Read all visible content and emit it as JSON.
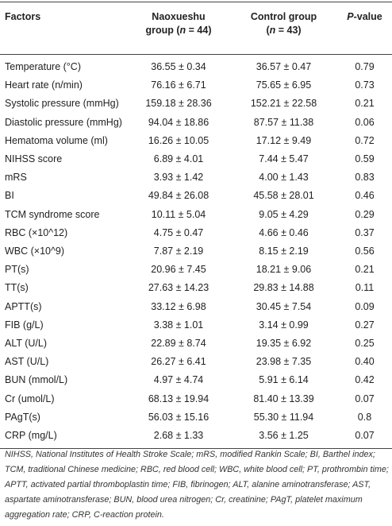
{
  "header": {
    "factors": "Factors",
    "group1": [
      "Naoxueshu",
      "group (",
      "n",
      " = 44)"
    ],
    "group2": [
      "Control group",
      "(",
      "n",
      " = 43)"
    ],
    "pvalue": [
      "P",
      "-value"
    ]
  },
  "table": {
    "rows": [
      [
        "Temperature (°C)",
        "36.55 ± 0.34",
        "36.57 ± 0.47",
        "0.79"
      ],
      [
        "Heart rate (n/min)",
        "76.16 ± 6.71",
        "75.65 ± 6.95",
        "0.73"
      ],
      [
        "Systolic pressure (mmHg)",
        "159.18 ± 28.36",
        "152.21 ± 22.58",
        "0.21"
      ],
      [
        "Diastolic pressure (mmHg)",
        "94.04 ± 18.86",
        "87.57 ± 11.38",
        "0.06"
      ],
      [
        "Hematoma volume (ml)",
        "16.26 ± 10.05",
        "17.12 ± 9.49",
        "0.72"
      ],
      [
        "NIHSS score",
        "6.89 ± 4.01",
        "7.44 ± 5.47",
        "0.59"
      ],
      [
        "mRS",
        "3.93 ± 1.42",
        "4.00 ± 1.43",
        "0.83"
      ],
      [
        "BI",
        "49.84 ± 26.08",
        "45.58 ± 28.01",
        "0.46"
      ],
      [
        "TCM syndrome score",
        "10.11 ± 5.04",
        "9.05 ± 4.29",
        "0.29"
      ],
      [
        "RBC (×10^12)",
        "4.75 ± 0.47",
        "4.66 ± 0.46",
        "0.37"
      ],
      [
        "WBC (×10^9)",
        "7.87 ± 2.19",
        "8.15 ± 2.19",
        "0.56"
      ],
      [
        "PT(s)",
        "20.96 ± 7.45",
        "18.21 ± 9.06",
        "0.21"
      ],
      [
        "TT(s)",
        "27.63 ± 14.23",
        "29.83 ± 14.88",
        "0.11"
      ],
      [
        "APTT(s)",
        "33.12 ± 6.98",
        "30.45 ± 7.54",
        "0.09"
      ],
      [
        "FIB (g/L)",
        "3.38 ± 1.01",
        "3.14 ± 0.99",
        "0.27"
      ],
      [
        "ALT (U/L)",
        "22.89 ± 8.74",
        "19.35 ± 6.92",
        "0.25"
      ],
      [
        "AST (U/L)",
        "26.27 ± 6.41",
        "23.98 ± 7.35",
        "0.40"
      ],
      [
        "BUN (mmol/L)",
        "4.97 ± 4.74",
        "5.91 ± 6.14",
        "0.42"
      ],
      [
        "Cr (umol/L)",
        "68.13 ± 19.94",
        "81.40 ± 13.39",
        "0.07"
      ],
      [
        "PAgT(s)",
        "56.03 ± 15.16",
        "55.30 ± 11.94",
        "0.8"
      ],
      [
        "CRP (mg/L)",
        "2.68 ± 1.33",
        "3.56 ± 1.25",
        "0.07"
      ]
    ]
  },
  "footnote": "NIHSS, National Institutes of Health Stroke Scale; mRS, modified Rankin Scale; BI, Barthel index; TCM, traditional Chinese medicine; RBC, red blood cell; WBC, white blood cell; PT, prothrombin time; APTT, activated partial thromboplastin time; FIB, fibrinogen; ALT, alanine aminotransferase; AST, aspartate aminotransferase; BUN, blood urea nitrogen; Cr, creatinine; PAgT, platelet maximum aggregation rate; CRP, C-reaction protein."
}
